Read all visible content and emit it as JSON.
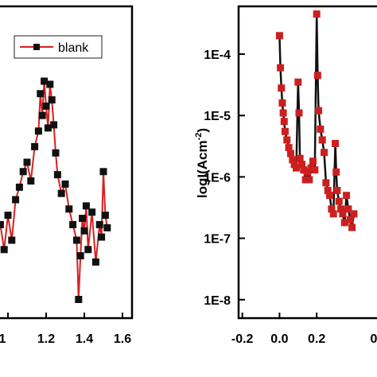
{
  "chart_data": [
    {
      "type": "line",
      "panel": "left",
      "xlabel": "",
      "ylabel": "",
      "xlim": [
        0.95,
        1.65
      ],
      "ylim": [
        0,
        1
      ],
      "xticks": [
        1.2,
        1.4,
        1.6
      ],
      "xtick_labels": [
        "1.2",
        "1.4",
        "1.6"
      ],
      "visible_xtick_fragments": [
        {
          "x": 1.0,
          "label": "1"
        }
      ],
      "legend": {
        "placement": "top-right",
        "entries": [
          "blank"
        ]
      },
      "series": [
        {
          "name": "blank",
          "line_color": "#d62020",
          "marker_color": "#111111",
          "marker": "square",
          "x": [
            0.96,
            0.98,
            1.0,
            1.02,
            1.04,
            1.06,
            1.08,
            1.1,
            1.12,
            1.14,
            1.16,
            1.17,
            1.18,
            1.19,
            1.2,
            1.21,
            1.22,
            1.23,
            1.24,
            1.25,
            1.26,
            1.28,
            1.3,
            1.32,
            1.34,
            1.36,
            1.37,
            1.38,
            1.39,
            1.4,
            1.41,
            1.42,
            1.44,
            1.46,
            1.48,
            1.49,
            1.5,
            1.51,
            1.52
          ],
          "y": [
            0.3,
            0.22,
            0.33,
            0.25,
            0.38,
            0.42,
            0.47,
            0.5,
            0.44,
            0.55,
            0.6,
            0.72,
            0.65,
            0.76,
            0.68,
            0.61,
            0.75,
            0.7,
            0.62,
            0.53,
            0.46,
            0.4,
            0.43,
            0.35,
            0.3,
            0.25,
            0.06,
            0.2,
            0.32,
            0.28,
            0.36,
            0.22,
            0.34,
            0.18,
            0.3,
            0.26,
            0.47,
            0.33,
            0.29
          ]
        }
      ]
    },
    {
      "type": "line",
      "panel": "right",
      "xlabel": "",
      "ylabel": "logI(Acm⁻²)",
      "ylabel_main": "logI(Acm",
      "ylabel_sup": "-2",
      "ylabel_close": ")",
      "y_scale": "log",
      "xlim": [
        -0.22,
        0.55
      ],
      "ylim": [
        5e-09,
        0.0006
      ],
      "xticks": [
        -0.2,
        0.0,
        0.2
      ],
      "xtick_labels": [
        "-0.2",
        "0.0",
        "0.2"
      ],
      "visible_xtick_fragments": [
        {
          "x": 0.4,
          "label": "0"
        }
      ],
      "yticks": [
        1e-08,
        1e-07,
        1e-06,
        1e-05,
        0.0001
      ],
      "ytick_labels": [
        "1E-8",
        "1E-7",
        "1E-6",
        "1E-5",
        "1E-4"
      ],
      "series": [
        {
          "line_color": "#111111",
          "marker_color": "#cc1f1f",
          "marker": "square",
          "x": [
            0.0,
            0.005,
            0.01,
            0.015,
            0.02,
            0.025,
            0.03,
            0.04,
            0.05,
            0.06,
            0.07,
            0.08,
            0.09,
            0.1,
            0.105,
            0.11,
            0.12,
            0.13,
            0.14,
            0.15,
            0.16,
            0.17,
            0.18,
            0.19,
            0.2,
            0.205,
            0.21,
            0.22,
            0.23,
            0.24,
            0.25,
            0.26,
            0.27,
            0.28,
            0.29,
            0.3,
            0.305,
            0.31,
            0.32,
            0.33,
            0.34,
            0.35,
            0.36,
            0.37,
            0.38,
            0.39,
            0.4
          ],
          "y": [
            0.0002,
            6e-05,
            2.8e-05,
            1.6e-05,
            1.1e-05,
            8e-06,
            5.5e-06,
            4e-06,
            3e-06,
            2.4e-06,
            1.9e-06,
            1.6e-06,
            1.4e-06,
            3.5e-05,
            1.1e-05,
            2e-06,
            1.6e-06,
            1.3e-06,
            9e-07,
            1.2e-06,
            9e-07,
            1.4e-06,
            1.8e-06,
            1.3e-06,
            0.00045,
            4.5e-05,
            1.2e-05,
            6e-06,
            4e-06,
            2.5e-06,
            8e-07,
            6e-07,
            5e-07,
            3e-07,
            2.5e-07,
            3.5e-06,
            1.2e-06,
            6e-07,
            4e-07,
            3e-07,
            2.5e-07,
            1.8e-07,
            5e-07,
            3e-07,
            2e-07,
            1.5e-07,
            2.5e-07
          ]
        }
      ]
    }
  ]
}
